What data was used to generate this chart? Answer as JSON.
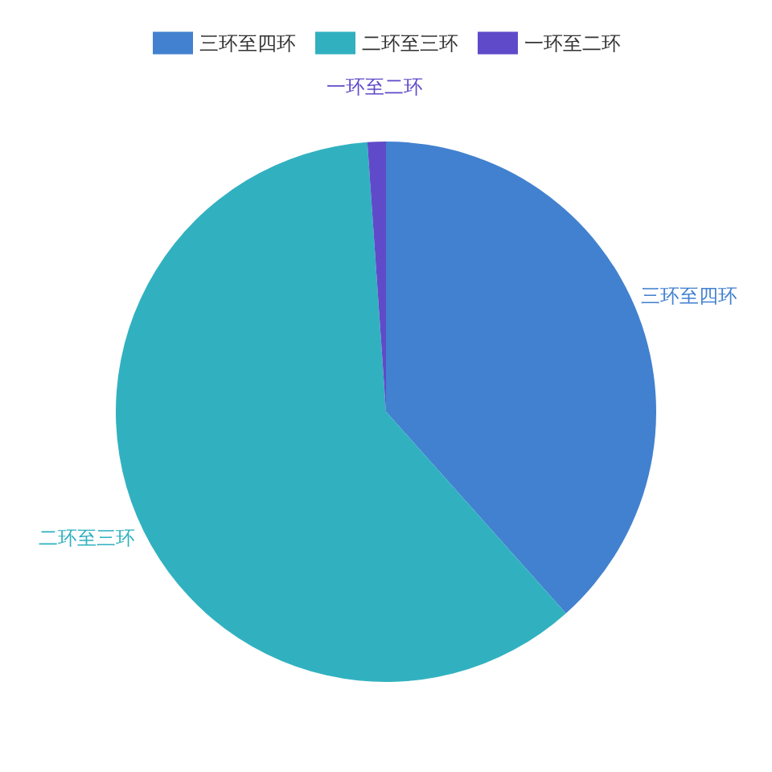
{
  "chart_data": {
    "type": "pie",
    "categories": [
      "三环至四环",
      "二环至三环",
      "一环至二环"
    ],
    "values": [
      38.4,
      60.5,
      1.1
    ],
    "colors": [
      "#4281cf",
      "#31b1c0",
      "#5f4bc9"
    ],
    "legend": "top"
  }
}
